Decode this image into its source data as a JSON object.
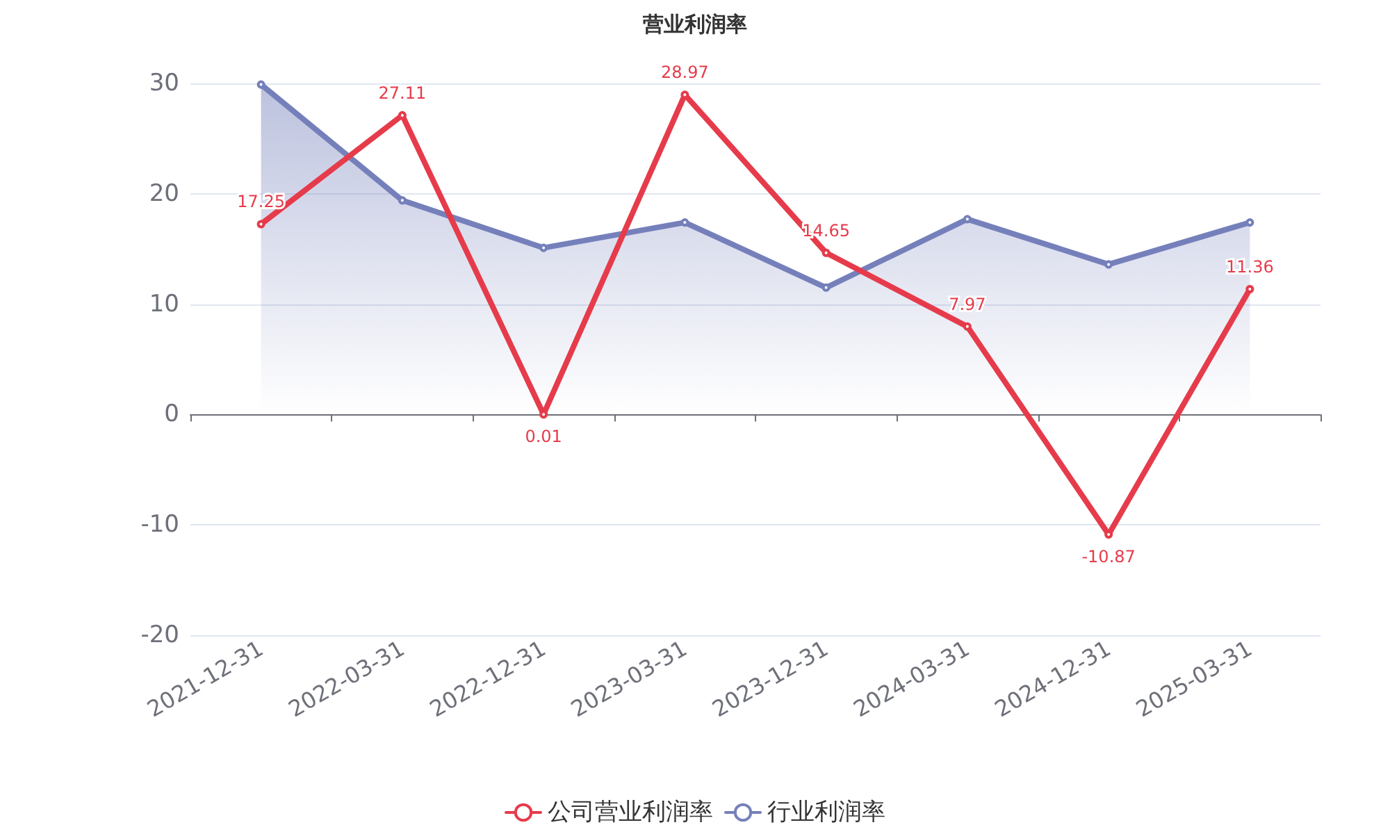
{
  "chart_data": {
    "type": "line",
    "title": "营业利润率",
    "categories": [
      "2021-12-31",
      "2022-03-31",
      "2022-12-31",
      "2023-03-31",
      "2023-12-31",
      "2024-03-31",
      "2024-12-31",
      "2025-03-31"
    ],
    "series": [
      {
        "name": "公司营业利润率",
        "type": "line",
        "color": "#e63b4b",
        "values": [
          17.25,
          27.11,
          0.01,
          28.97,
          14.65,
          7.97,
          -10.87,
          11.36
        ],
        "value_labels": [
          "17.25",
          "27.11",
          "0.01",
          "28.97",
          "14.65",
          "7.97",
          "-10.87",
          "11.36"
        ]
      },
      {
        "name": "行业利润率",
        "type": "area",
        "color": "#7580bb",
        "values": [
          29.9,
          19.4,
          15.1,
          17.4,
          11.5,
          17.7,
          13.6,
          17.4
        ]
      }
    ],
    "ylim": [
      -20,
      30
    ],
    "yticks": [
      -20,
      -10,
      0,
      10,
      20,
      30
    ],
    "grid": "y",
    "legend": "bottom",
    "marker": "circle",
    "line_style": "solid"
  }
}
